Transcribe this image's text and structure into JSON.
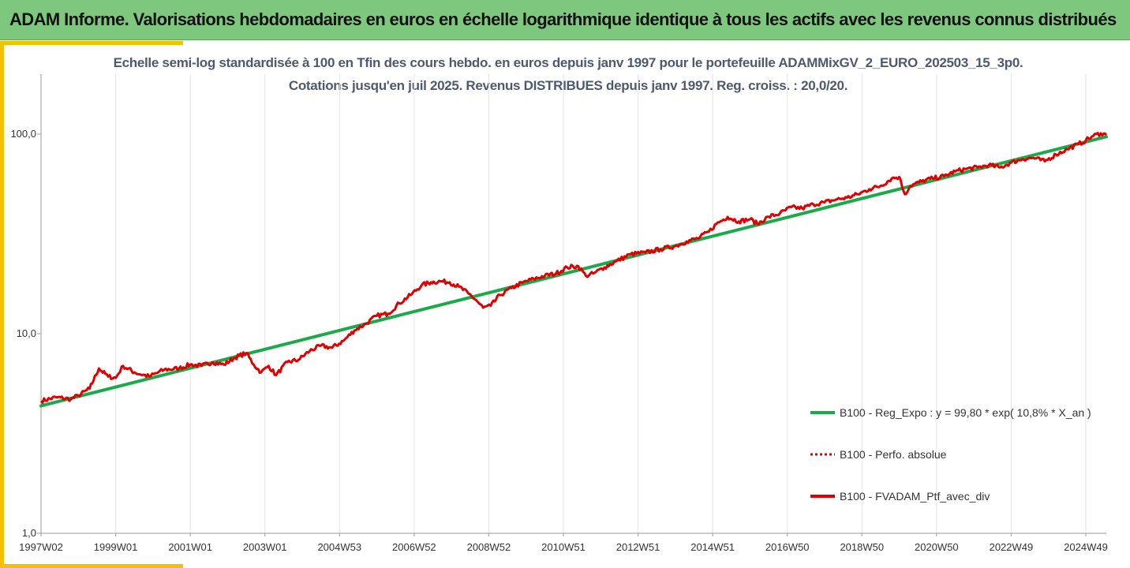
{
  "header": {
    "title": "ADAM Informe. Valorisations hebdomadaires en euros en échelle logarithmique identique à tous les actifs avec les revenus connus distribués"
  },
  "colors": {
    "header_bg": "#7ec77e",
    "accent": "#f2c200",
    "regression": "#1aaa4a",
    "perf": "#e00000",
    "grid": "#e3e3e3"
  },
  "chart_data": {
    "type": "line",
    "title": "Echelle semi-log standardisée  à 100 en Tfin des cours hebdo.  en euros depuis janv 1997 pour le portefeuille ADAMMixGV_2_EURO_202503_15_3p0.",
    "subtitle": "Cotations  jusqu'en juil 2025. Revenus DISTRIBUES depuis janv 1997. Reg. croiss. : 20,0/20.",
    "y_scale": "log",
    "ylim": [
      1,
      200
    ],
    "y_ticks": [
      1,
      10,
      100
    ],
    "y_tick_labels": [
      "1,0",
      "10,0",
      "100,0"
    ],
    "xlim": [
      1997.0,
      2025.55
    ],
    "x_tick_positions": [
      1997.0,
      1999.0,
      2001.0,
      2003.0,
      2005.0,
      2007.0,
      2009.0,
      2011.0,
      2013.0,
      2015.0,
      2017.0,
      2019.0,
      2021.0,
      2023.0,
      2025.0
    ],
    "x_tick_labels": [
      "1997W02",
      "1999W01",
      "2001W01",
      "2003W01",
      "2004W53",
      "2006W52",
      "2008W52",
      "2010W51",
      "2012W51",
      "2014W51",
      "2016W50",
      "2018W50",
      "2020W50",
      "2022W49",
      "2024W49"
    ],
    "grid": "vertical",
    "legend_position": "right",
    "series": [
      {
        "name": "B100 - Reg_Expo : y = 99,80 * exp( 10,8% *  X_an )",
        "style": "solid",
        "color": "#1aaa4a",
        "x": [
          1997.0,
          2025.55
        ],
        "y": [
          4.35,
          97.0
        ]
      },
      {
        "name": "B100 - Perfo. absolue",
        "style": "dotted",
        "color": "#e00000",
        "x": [],
        "y": []
      },
      {
        "name": "B100 - FVADAM_Ptf_avec_div",
        "style": "solid",
        "color": "#e00000",
        "x": [
          1997.0,
          1997.4,
          1997.8,
          1998.0,
          1998.3,
          1998.55,
          1998.8,
          1999.0,
          1999.2,
          1999.5,
          1999.9,
          2000.3,
          2000.7,
          2001.0,
          2001.3,
          2001.6,
          2001.9,
          2002.2,
          2002.5,
          2002.7,
          2002.9,
          2003.1,
          2003.3,
          2003.6,
          2003.9,
          2004.2,
          2004.5,
          2004.8,
          2005.1,
          2005.4,
          2005.7,
          2006.0,
          2006.3,
          2006.6,
          2006.9,
          2007.2,
          2007.45,
          2007.7,
          2007.95,
          2008.2,
          2008.45,
          2008.65,
          2008.85,
          2009.05,
          2009.3,
          2009.6,
          2009.9,
          2010.2,
          2010.5,
          2010.8,
          2011.1,
          2011.4,
          2011.6,
          2011.8,
          2012.1,
          2012.4,
          2012.8,
          2013.2,
          2013.6,
          2014.0,
          2014.3,
          2014.6,
          2014.9,
          2015.1,
          2015.4,
          2015.7,
          2016.0,
          2016.2,
          2016.5,
          2016.8,
          2017.1,
          2017.4,
          2017.7,
          2018.0,
          2018.3,
          2018.6,
          2018.9,
          2019.2,
          2019.5,
          2019.8,
          2020.0,
          2020.15,
          2020.3,
          2020.6,
          2020.9,
          2021.2,
          2021.5,
          2021.8,
          2022.1,
          2022.4,
          2022.7,
          2023.0,
          2023.3,
          2023.6,
          2023.9,
          2024.2,
          2024.5,
          2024.8,
          2025.0,
          2025.2,
          2025.4,
          2025.55
        ],
        "y": [
          4.6,
          4.8,
          4.7,
          4.9,
          5.3,
          6.7,
          6.1,
          6.0,
          6.9,
          6.4,
          6.1,
          6.6,
          6.7,
          7.0,
          6.9,
          7.2,
          7.0,
          7.6,
          8.0,
          7.0,
          6.4,
          6.9,
          6.2,
          7.2,
          7.4,
          8.2,
          8.7,
          8.5,
          9.2,
          10.4,
          11.2,
          12.3,
          12.6,
          14.2,
          15.6,
          17.5,
          18.1,
          18.3,
          18.1,
          17.2,
          15.9,
          14.8,
          13.5,
          13.8,
          15.6,
          16.9,
          18.0,
          18.8,
          19.5,
          20.0,
          21.5,
          21.8,
          19.5,
          20.0,
          21.5,
          23.0,
          25.0,
          25.5,
          26.5,
          27.5,
          29.0,
          30.0,
          32.5,
          35.5,
          38.5,
          36.5,
          37.5,
          35.5,
          38.5,
          40.0,
          43.0,
          42.5,
          44.5,
          45.5,
          47.0,
          48.0,
          50.0,
          53.0,
          55.0,
          60.0,
          61.0,
          50.0,
          55.0,
          58.0,
          60.0,
          61.5,
          65.0,
          67.0,
          68.0,
          70.0,
          68.0,
          72.0,
          75.0,
          76.0,
          73.0,
          79.0,
          84.0,
          89.0,
          93.0,
          98.0,
          101.0,
          99.0
        ]
      }
    ]
  }
}
